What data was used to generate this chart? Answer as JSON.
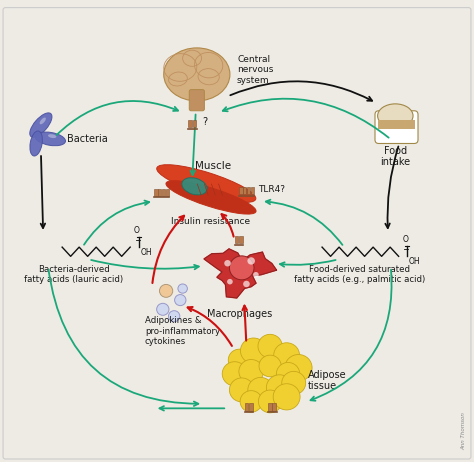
{
  "bg_color": "#f0ede8",
  "labels": {
    "bacteria": "Bacteria",
    "cns": "Central\nnervous\nsystem",
    "food_intake": "Food\nintake",
    "muscle": "Muscle",
    "tlr4": "TLR4?",
    "insulin_resistance": "Insulin resistance",
    "bacteria_fatty": "Bacteria-derived\nfatty acids (lauric acid)",
    "macrophages": "Macrophages",
    "food_fatty": "Food-derived saturated\nfatty acids (e.g., palmitic acid)",
    "adipokines": "Adipokines &\npro-inflammatory\ncytokines",
    "adipose": "Adipose\ntissue",
    "question": "?"
  },
  "colors": {
    "background": "#eeebe4",
    "green_arrow": "#1aa87a",
    "black_arrow": "#111111",
    "red_arrow": "#cc1111",
    "brain_body": "#d4b080",
    "brain_edge": "#b08848",
    "brain_fold": "#c09060",
    "brain_stem": "#c09060",
    "muscle_main": "#d94020",
    "muscle_dark": "#c03018",
    "muscle_teal": "#2e9080",
    "bacteria_main": "#6068b8",
    "bacteria_edge": "#4850a0",
    "adipose_fill": "#f0d030",
    "adipose_edge": "#c8a818",
    "macrophage_fill": "#c83030",
    "macrophage_edge": "#902020",
    "macrophage_nuc": "#e05858",
    "receptor_fill": "#b87848",
    "receptor_edge": "#805030",
    "bread_top": "#e8dcc0",
    "bread_body": "#c8a870",
    "bread_edge": "#a08848",
    "cytokine_fill1": "#f0c898",
    "cytokine_fill2": "#d0d8f0",
    "cytokine_edge": "#b09878",
    "text_color": "#1a1a1a",
    "fatty_color": "#111111"
  }
}
